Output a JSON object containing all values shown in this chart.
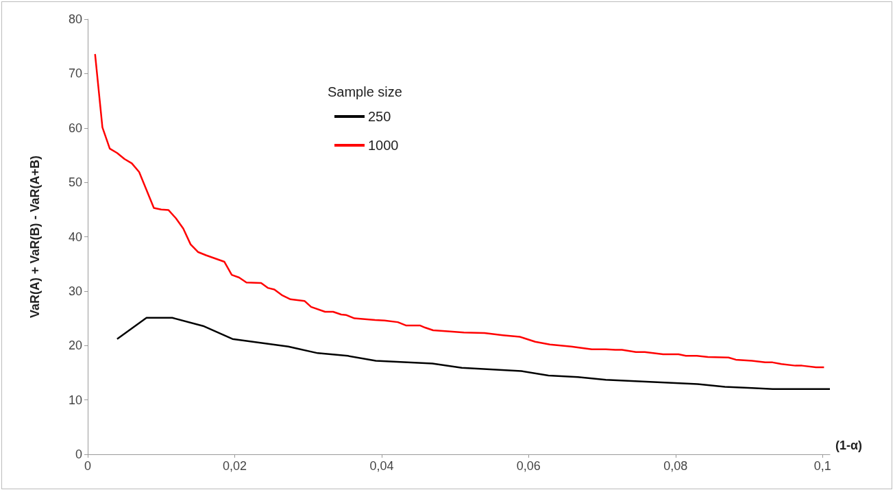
{
  "chart_data": {
    "type": "line",
    "xlabel": "(1-α)",
    "ylabel": "VaR(A) + VaR(B) - VaR(A+B)",
    "legend_title": "Sample size",
    "legend": "top",
    "grid": false,
    "xlim": [
      0,
      0.101
    ],
    "xticks": [
      0,
      {
        "value": 0.02,
        "label": "0,02"
      },
      {
        "value": 0.04,
        "label": "0,04"
      },
      {
        "value": 0.06,
        "label": "0,06"
      },
      {
        "value": 0.08,
        "label": "0,08"
      },
      {
        "value": 0.1,
        "label": "0,1"
      }
    ],
    "ylim": [
      0,
      80
    ],
    "yticks": [
      0,
      10,
      20,
      30,
      40,
      50,
      60,
      70,
      80
    ],
    "series": [
      {
        "name": "250",
        "color": "#000000",
        "x": [
          0.004,
          0.008,
          0.0115,
          0.0157,
          0.0197,
          0.0273,
          0.0313,
          0.0354,
          0.0392,
          0.0469,
          0.0509,
          0.059,
          0.0627,
          0.0667,
          0.0705,
          0.083,
          0.0867,
          0.0904,
          0.0932,
          0.101
        ],
        "values": [
          21.2,
          25.1,
          25.1,
          23.6,
          21.2,
          19.8,
          18.6,
          18.1,
          17.2,
          16.7,
          15.9,
          15.3,
          14.5,
          14.2,
          13.7,
          12.9,
          12.4,
          12.2,
          12.0,
          12.0
        ]
      },
      {
        "name": "1000",
        "color": "#ff0000",
        "x": [
          0.001,
          0.002,
          0.003,
          0.004,
          0.005,
          0.006,
          0.007,
          0.008,
          0.009,
          0.01,
          0.011,
          0.012,
          0.013,
          0.014,
          0.015,
          0.0161,
          0.0186,
          0.0196,
          0.0206,
          0.0216,
          0.0236,
          0.0245,
          0.0254,
          0.0265,
          0.0276,
          0.0295,
          0.0304,
          0.0323,
          0.0334,
          0.0345,
          0.0352,
          0.0363,
          0.0391,
          0.0404,
          0.0422,
          0.0433,
          0.0452,
          0.0459,
          0.047,
          0.049,
          0.0512,
          0.054,
          0.0565,
          0.0588,
          0.0609,
          0.0629,
          0.0658,
          0.0686,
          0.0705,
          0.0718,
          0.0727,
          0.0746,
          0.0758,
          0.0783,
          0.0804,
          0.0814,
          0.0829,
          0.0844,
          0.0872,
          0.0882,
          0.0904,
          0.0922,
          0.0932,
          0.0944,
          0.0963,
          0.0972,
          0.0991,
          0.1002
        ],
        "values": [
          73.6,
          60.1,
          56.2,
          55.4,
          54.3,
          53.5,
          51.9,
          48.6,
          45.3,
          45.0,
          44.9,
          43.4,
          41.5,
          38.6,
          37.2,
          36.6,
          35.4,
          33.0,
          32.5,
          31.6,
          31.5,
          30.6,
          30.3,
          29.2,
          28.5,
          28.2,
          27.1,
          26.2,
          26.2,
          25.7,
          25.6,
          25.0,
          24.7,
          24.6,
          24.3,
          23.7,
          23.7,
          23.3,
          22.8,
          22.6,
          22.4,
          22.3,
          21.9,
          21.6,
          20.7,
          20.2,
          19.8,
          19.3,
          19.3,
          19.2,
          19.2,
          18.8,
          18.8,
          18.4,
          18.4,
          18.1,
          18.1,
          17.9,
          17.8,
          17.4,
          17.2,
          16.9,
          16.9,
          16.6,
          16.3,
          16.3,
          16.0,
          16.0
        ]
      }
    ]
  }
}
